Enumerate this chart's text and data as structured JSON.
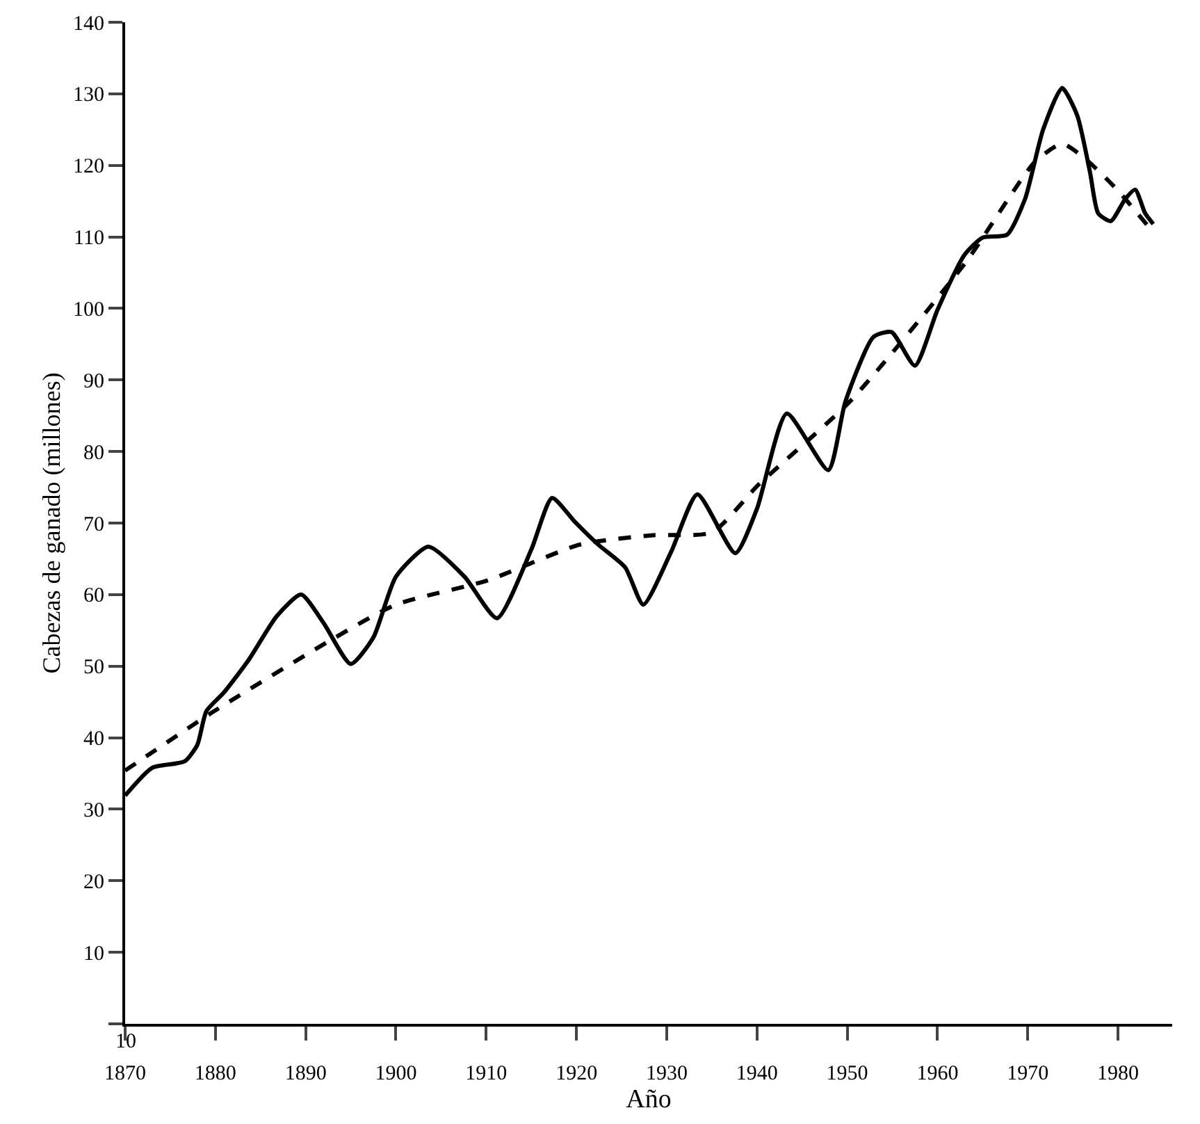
{
  "chart_data": {
    "type": "line",
    "xlabel": "Año",
    "ylabel": "Cabezas de ganado (millones)",
    "xlim": [
      1870,
      1986
    ],
    "xticks": [
      1870,
      1880,
      1890,
      1900,
      1910,
      1920,
      1930,
      1940,
      1950,
      1960,
      1970,
      1980
    ],
    "ylim": [
      0,
      140
    ],
    "annotations": [
      "10"
    ],
    "yticks": [
      {
        "value": 0,
        "label": null
      },
      10,
      20,
      30,
      40,
      50,
      60,
      70,
      80,
      90,
      100,
      110,
      120,
      130,
      140
    ],
    "grid": false,
    "marker": "none",
    "series": [
      {
        "color": "#000000",
        "line_style": "solid",
        "x": [
          1870,
          1873,
          1876.6,
          1878,
          1879,
          1881,
          1883.7,
          1886.8,
          1889.5,
          1892,
          1895,
          1897.5,
          1900,
          1903.6,
          1907.6,
          1911.2,
          1915,
          1917.3,
          1919.8,
          1922.4,
          1925.4,
          1927.4,
          1930.5,
          1933.4,
          1937.6,
          1940,
          1943.3,
          1947.9,
          1949.8,
          1952.9,
          1954.9,
          1957.5,
          1960,
          1963,
          1965,
          1967.7,
          1969.7,
          1971.7,
          1973.8,
          1975.5,
          1976.9,
          1977.8,
          1979.2,
          1980.8,
          1981.9,
          1983,
          1983.9
        ],
        "values": [
          31.9,
          35.8,
          36.7,
          39,
          43.7,
          46.4,
          50.9,
          57,
          60,
          56,
          50.3,
          54,
          62.5,
          66.7,
          62.5,
          56.7,
          66.3,
          73.5,
          70.2,
          67,
          63.8,
          58.6,
          66,
          74,
          65.8,
          72,
          85.3,
          77.4,
          87,
          96,
          96.7,
          92,
          99.8,
          107.5,
          109.9,
          110.3,
          115.3,
          125,
          130.8,
          126.9,
          119,
          113.3,
          112.2,
          115.3,
          116.6,
          113.3,
          111.8
        ]
      },
      {
        "color": "#000000",
        "line_style": "dashed",
        "x": [
          1870,
          1879.6,
          1893,
          1900,
          1910.2,
          1920.4,
          1928.5,
          1935,
          1940.2,
          1950.3,
          1963.1,
          1970.8,
          1973.8,
          1976.3,
          1979.9,
          1983.4
        ],
        "values": [
          35.4,
          43.5,
          53.8,
          58.6,
          62,
          67,
          68.3,
          68.7,
          75.4,
          87,
          106.4,
          120.5,
          123,
          121,
          116.6,
          111.4
        ]
      }
    ]
  }
}
